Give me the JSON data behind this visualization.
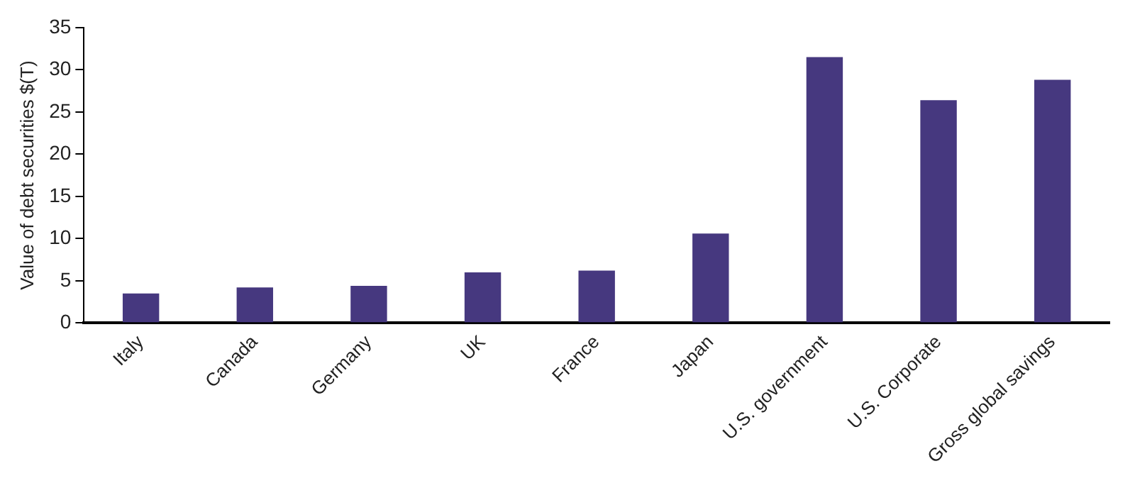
{
  "chart_data": {
    "type": "bar",
    "ylabel": "Value of debt securities $(T)",
    "categories": [
      "Italy",
      "Canada",
      "Germany",
      "UK",
      "France",
      "Japan",
      "U.S. government",
      "U.S. Corporate",
      "Gross global savings"
    ],
    "values": [
      3.5,
      4.2,
      4.4,
      6.0,
      6.2,
      10.6,
      31.5,
      26.4,
      28.8
    ],
    "color": "#46387f",
    "ylim": [
      0,
      35
    ],
    "yticks": [
      0,
      5,
      10,
      15,
      20,
      25,
      30,
      35
    ],
    "grid": false,
    "legend": false
  }
}
